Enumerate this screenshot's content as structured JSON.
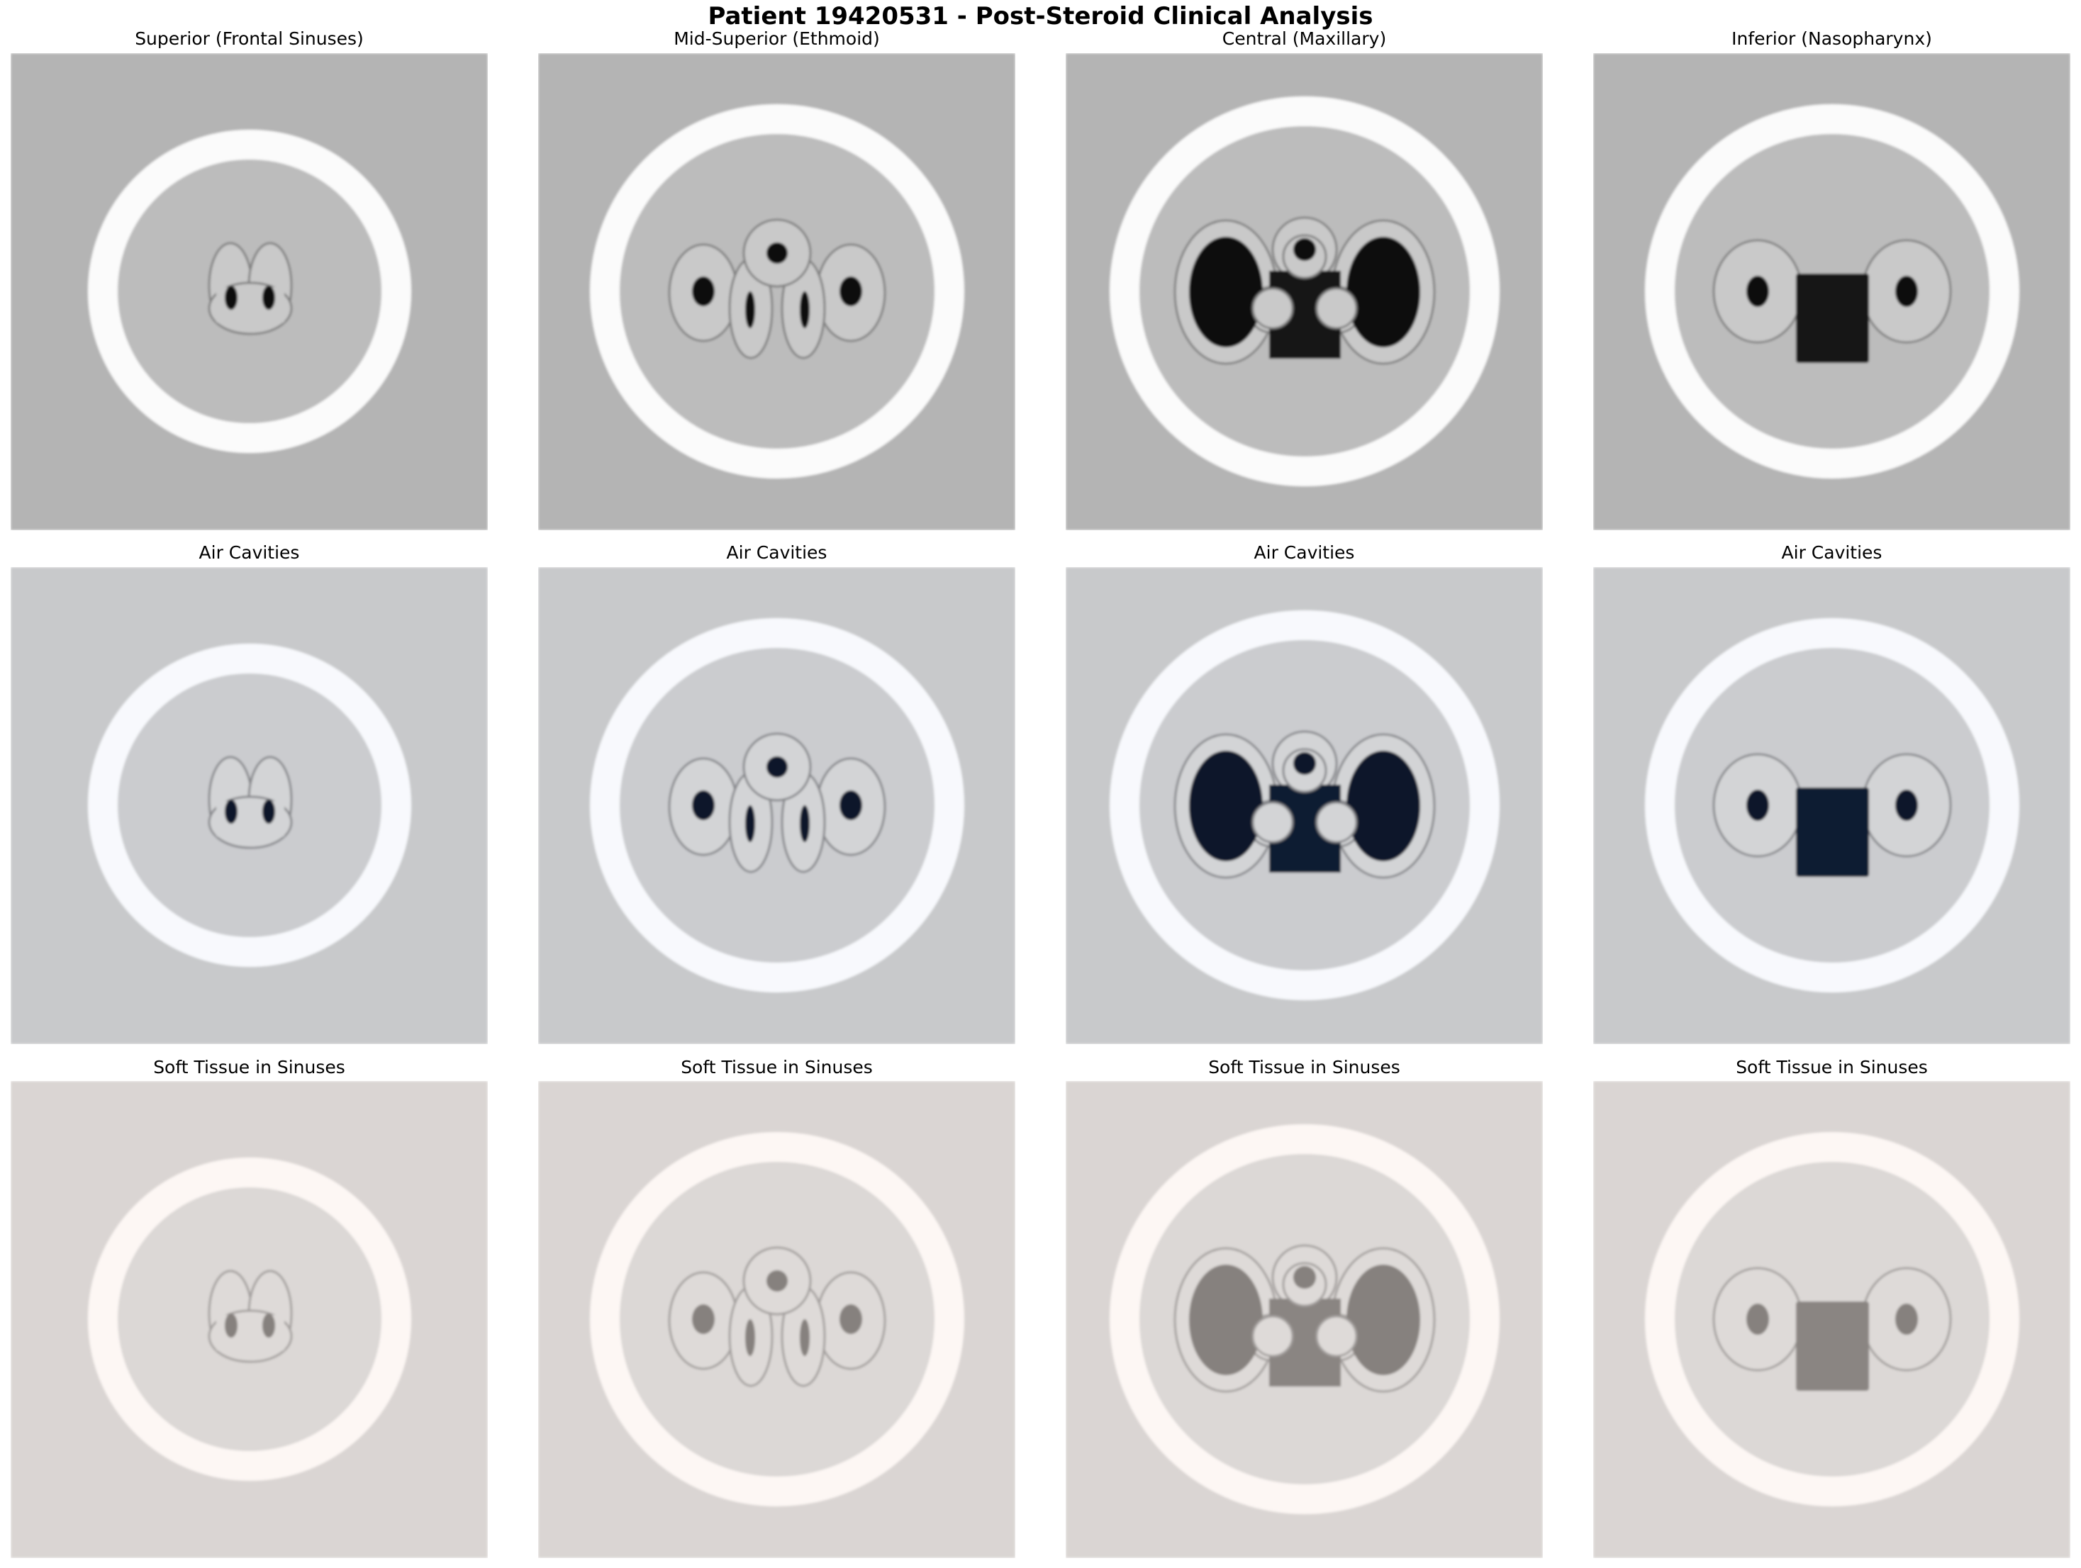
{
  "figure_title": "Patient 19420531 - Post-Steroid Clinical Analysis",
  "rows": [
    {
      "row_id": "ct",
      "panel_titles": [
        "Superior (Frontal Sinuses)",
        "Mid-Superior (Ethmoid)",
        "Central (Maxillary)",
        "Inferior (Nasopharynx)"
      ],
      "colors": {
        "background": "#b4b4b4",
        "inside": "#bcbcbc",
        "ring": "#fbfbfb",
        "tissue": "#c9c9c9",
        "tissue_edge": "#7f7f7f",
        "cavity": "#0b0b0b",
        "cavity_alt": "#151515"
      }
    },
    {
      "row_id": "air",
      "panel_titles": [
        "Air Cavities",
        "Air Cavities",
        "Air Cavities",
        "Air Cavities"
      ],
      "colors": {
        "background": "#c8c9cb",
        "inside": "#cbcccf",
        "ring": "#f8f9fd",
        "tissue": "#d3d4d6",
        "tissue_edge": "#85868a",
        "cavity": "#08142a",
        "cavity_alt": "#0d1a30"
      }
    },
    {
      "row_id": "soft",
      "panel_titles": [
        "Soft Tissue in Sinuses",
        "Soft Tissue in Sinuses",
        "Soft Tissue in Sinuses",
        "Soft Tissue in Sinuses"
      ],
      "colors": {
        "background": "#dad5d3",
        "inside": "#dcd8d6",
        "ring": "#fdf7f4",
        "tissue": "#dedad8",
        "tissue_edge": "#a39f9d",
        "cavity": "#86817e",
        "cavity_alt": "#8a8582"
      }
    }
  ],
  "slices": [
    {
      "level": "superior"
    },
    {
      "level": "mid-superior"
    },
    {
      "level": "central"
    },
    {
      "level": "inferior"
    }
  ]
}
